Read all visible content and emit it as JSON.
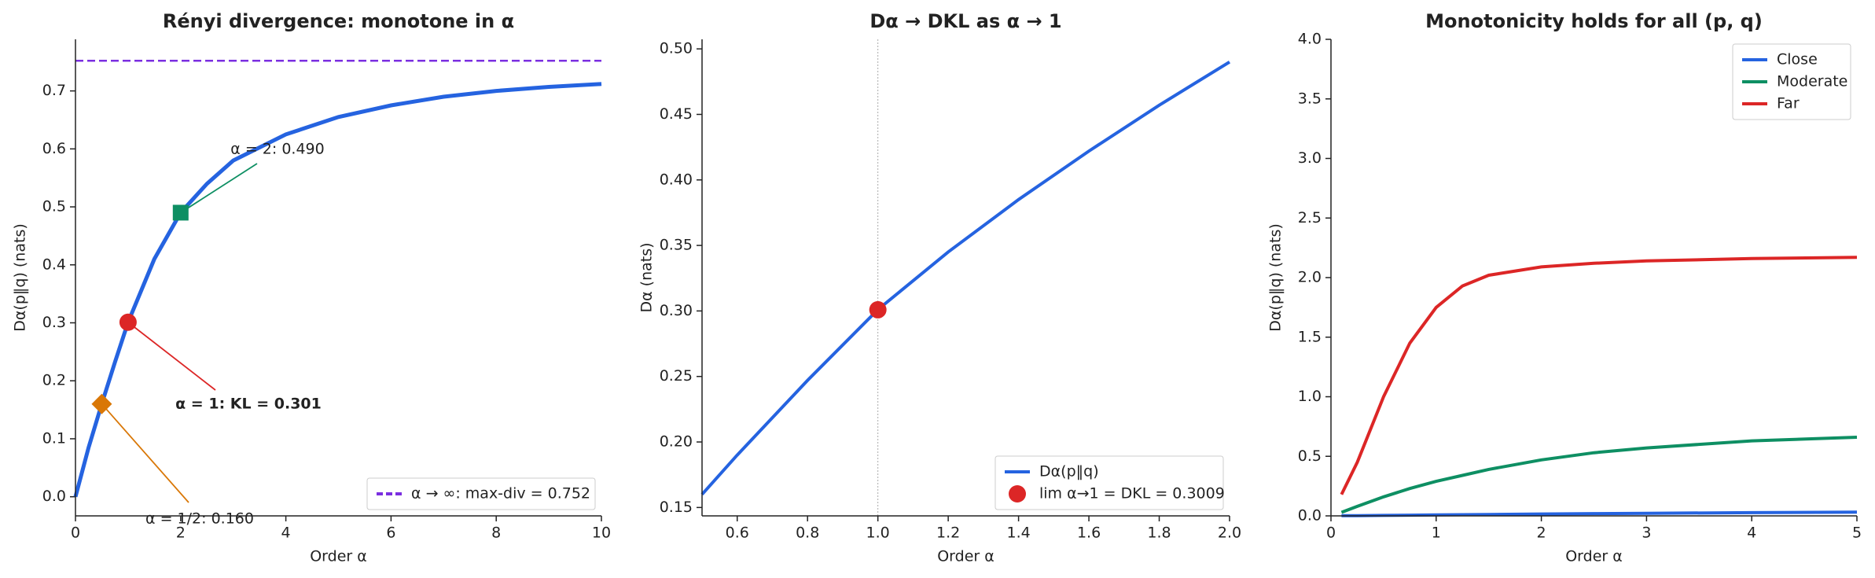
{
  "chart_data": [
    {
      "type": "line",
      "title": "Rényi divergence: monotone in α",
      "xlabel": "Order α",
      "ylabel": "Dα(p‖q) (nats)",
      "xlim": [
        0,
        10
      ],
      "ylim": [
        -0.033,
        0.789
      ],
      "xticks": [
        0,
        2,
        4,
        6,
        8,
        10
      ],
      "yticks": [
        {
          "value": 0,
          "label": "0.0"
        },
        0.1,
        0.2,
        0.3,
        0.4,
        0.5,
        0.6,
        0.7
      ],
      "series": [
        {
          "color": "#2563e0",
          "x": [
            0,
            0.25,
            0.5,
            0.75,
            1,
            1.5,
            2,
            2.5,
            3,
            4,
            5,
            6,
            7,
            8,
            9,
            10
          ],
          "values": [
            0,
            0.085,
            0.16,
            0.232,
            0.301,
            0.41,
            0.49,
            0.54,
            0.58,
            0.625,
            0.655,
            0.675,
            0.69,
            0.7,
            0.707,
            0.712
          ]
        }
      ],
      "hline": {
        "value": 0.752,
        "name": "α → ∞: max-div = 0.752",
        "color": "#7b2fe0"
      },
      "points": [
        {
          "x": 2,
          "y": 0.49,
          "label": "α = 2: 0.490",
          "color": "#0e8f63",
          "marker": "square"
        },
        {
          "x": 1,
          "y": 0.301,
          "label": "α = 1: KL = 0.301",
          "color": "#dc2626",
          "marker": "circle"
        },
        {
          "x": 0.5,
          "y": 0.16,
          "label": "α = 1/2: 0.160",
          "color": "#d97706",
          "marker": "diamond"
        }
      ],
      "legend": "lower right"
    },
    {
      "type": "line",
      "title": "Dα → DKL as α → 1",
      "xlabel": "Order α",
      "ylabel": "Dα (nats)",
      "xlim": [
        0.5,
        2.0
      ],
      "ylim": [
        0.1436,
        0.5073
      ],
      "xticks": [
        0.6,
        0.8,
        {
          "value": 1,
          "label": "1.0"
        },
        1.2,
        1.4,
        1.6,
        1.8,
        {
          "value": 2,
          "label": "2.0"
        }
      ],
      "yticks": [
        0.15,
        {
          "value": 0.2,
          "label": "0.20"
        },
        0.25,
        {
          "value": 0.3,
          "label": "0.30"
        },
        0.35,
        {
          "value": 0.4,
          "label": "0.40"
        },
        0.45,
        {
          "value": 0.5,
          "label": "0.50"
        }
      ],
      "series": [
        {
          "name": "Dα(p‖q)",
          "color": "#2563e0",
          "x": [
            0.5,
            0.6,
            0.8,
            1.0,
            1.2,
            1.4,
            1.6,
            1.8,
            2.0
          ],
          "values": [
            0.16,
            0.19,
            0.247,
            0.301,
            0.345,
            0.385,
            0.422,
            0.457,
            0.49
          ]
        }
      ],
      "vline": 1.0,
      "points": [
        {
          "x": 1.0,
          "y": 0.3009,
          "name": "lim α→1 = DKL = 0.3009",
          "color": "#dc2626",
          "marker": "circle"
        }
      ],
      "legend": "lower right"
    },
    {
      "type": "line",
      "title": "Monotonicity holds for all (p, q)",
      "xlabel": "Order α",
      "ylabel": "Dα(p‖q) (nats)",
      "xlim": [
        0,
        5
      ],
      "ylim": [
        0,
        4
      ],
      "xticks": [
        0,
        1,
        2,
        3,
        4,
        5
      ],
      "yticks": [
        {
          "value": 0,
          "label": "0.0"
        },
        0.5,
        {
          "value": 1,
          "label": "1.0"
        },
        1.5,
        {
          "value": 2,
          "label": "2.0"
        },
        2.5,
        {
          "value": 3,
          "label": "3.0"
        },
        3.5,
        {
          "value": 4,
          "label": "4.0"
        }
      ],
      "series": [
        {
          "name": "Close",
          "color": "#2563e0",
          "x": [
            0.1,
            0.25,
            0.5,
            0.75,
            1,
            1.25,
            1.5,
            2,
            2.5,
            3,
            4,
            5
          ],
          "values": [
            0.001,
            0.002,
            0.004,
            0.006,
            0.008,
            0.01,
            0.012,
            0.016,
            0.019,
            0.022,
            0.027,
            0.031
          ]
        },
        {
          "name": "Moderate",
          "color": "#0e8f63",
          "x": [
            0.1,
            0.25,
            0.5,
            0.75,
            1,
            1.25,
            1.5,
            2,
            2.5,
            3,
            4,
            5
          ],
          "values": [
            0.03,
            0.08,
            0.16,
            0.23,
            0.29,
            0.34,
            0.39,
            0.47,
            0.53,
            0.57,
            0.63,
            0.66
          ]
        },
        {
          "name": "Far",
          "color": "#dc2626",
          "x": [
            0.1,
            0.25,
            0.5,
            0.75,
            1,
            1.25,
            1.5,
            2,
            2.5,
            3,
            4,
            5
          ],
          "values": [
            0.18,
            0.45,
            1.0,
            1.45,
            1.75,
            1.93,
            2.02,
            2.09,
            2.12,
            2.14,
            2.16,
            2.17
          ]
        }
      ],
      "legend": "upper right"
    }
  ]
}
